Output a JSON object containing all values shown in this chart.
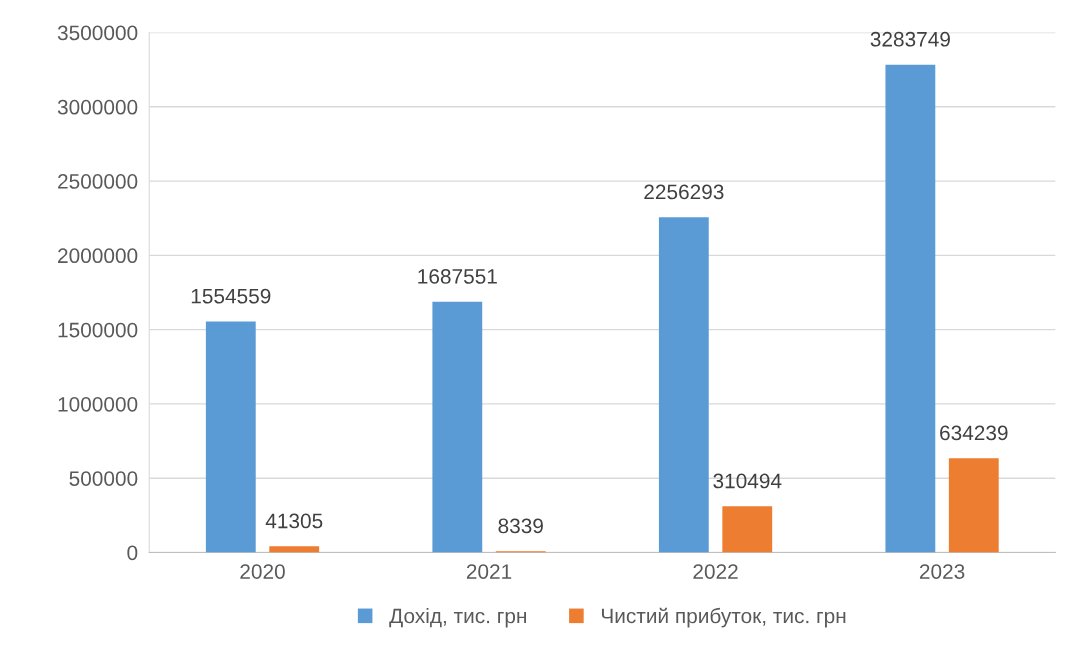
{
  "chart_data": {
    "type": "bar",
    "categories": [
      "2020",
      "2021",
      "2022",
      "2023"
    ],
    "series": [
      {
        "name": "Дохід, тис. грн",
        "color": "#5b9bd5",
        "values": [
          1554559,
          1687551,
          2256293,
          3283749
        ]
      },
      {
        "name": "Чистий прибуток, тис. грн",
        "color": "#ed7d31",
        "values": [
          41305,
          8339,
          310494,
          634239
        ]
      }
    ],
    "ylim": [
      0,
      3500000
    ],
    "yticks": [
      0,
      500000,
      1000000,
      1500000,
      2000000,
      2500000,
      3000000,
      3500000
    ],
    "grid": "y",
    "legend": "bottom",
    "data_labels": true
  }
}
